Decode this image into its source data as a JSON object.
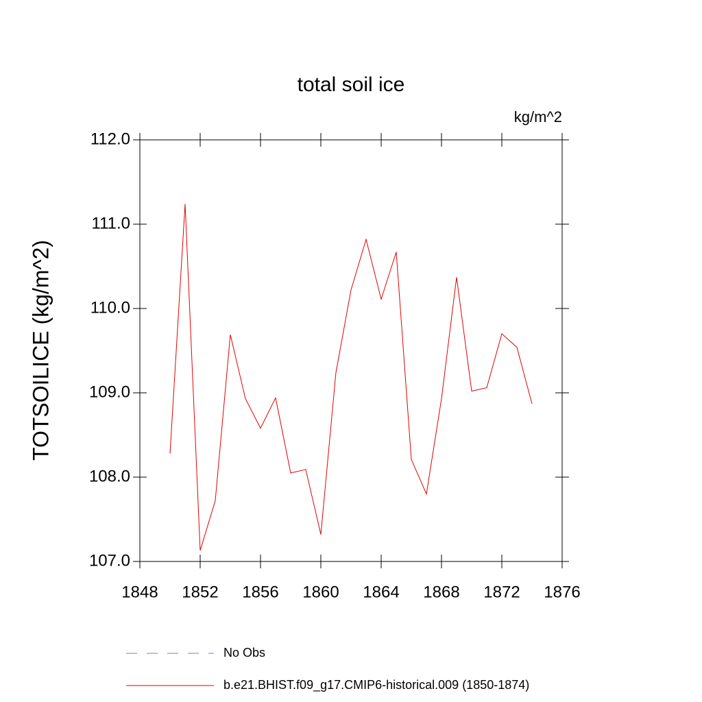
{
  "chart_data": {
    "type": "line",
    "title": "total soil ice",
    "units": "kg/m^2",
    "y_label": "TOTSOILICE  (kg/m^2)",
    "x": [
      1850,
      1851,
      1852,
      1853,
      1854,
      1855,
      1856,
      1857,
      1858,
      1859,
      1860,
      1861,
      1862,
      1863,
      1864,
      1865,
      1866,
      1867,
      1868,
      1869,
      1870,
      1871,
      1872,
      1873,
      1874
    ],
    "series": [
      {
        "name": "b.e21.BHIST.f09_g17.CMIP6-historical.009 (1850-1874)",
        "color": "#e00000",
        "values": [
          108.28,
          111.24,
          107.13,
          107.72,
          109.69,
          108.93,
          108.58,
          108.94,
          108.05,
          108.09,
          107.32,
          109.24,
          110.22,
          110.82,
          110.11,
          110.67,
          108.21,
          107.8,
          108.93,
          110.37,
          109.02,
          109.06,
          109.7,
          109.54,
          108.87
        ]
      }
    ],
    "extra_legend": [
      {
        "name": "No Obs",
        "color": "#7a7ad0",
        "dashed": true
      }
    ],
    "xlim": [
      1848,
      1876
    ],
    "xticks": [
      1848,
      1852,
      1856,
      1860,
      1864,
      1868,
      1872,
      1876
    ],
    "ylim": [
      107,
      112
    ],
    "yticks": [
      {
        "value": 107,
        "label": "107.0"
      },
      {
        "value": 108,
        "label": "108.0"
      },
      {
        "value": 109,
        "label": "109.0"
      },
      {
        "value": 110,
        "label": "110.0"
      },
      {
        "value": 111,
        "label": "111.0"
      },
      {
        "value": 112,
        "label": "112.0"
      }
    ]
  }
}
